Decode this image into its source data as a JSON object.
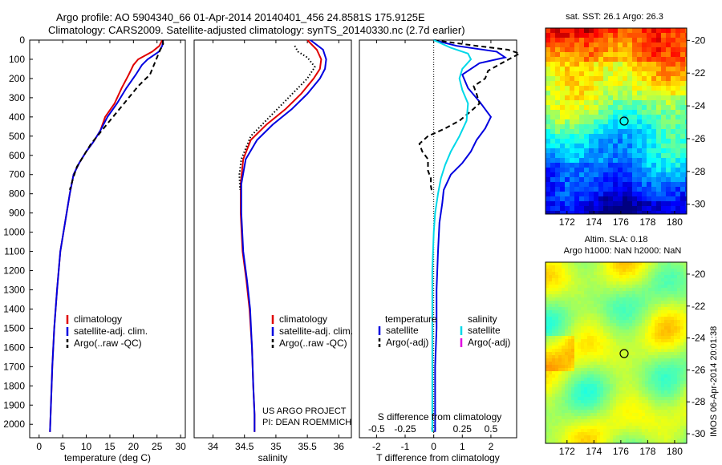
{
  "header": {
    "line1": "Argo profile: AO 5904340_66 01-Apr-2014 20140401_456 24.8581S 175.9125E",
    "line2": "Climatology: CARS2009. Satellite-adjusted climatology: synTS_20140330.nc (2.7d earlier)"
  },
  "chart_data": [
    {
      "id": "temperature",
      "type": "line",
      "xlabel": "temperature (deg C)",
      "xlim": [
        -2,
        31
      ],
      "ylim": [
        2070,
        0
      ],
      "xticks": [
        0,
        5,
        10,
        15,
        20,
        25,
        30
      ],
      "yticks": [
        0,
        100,
        200,
        300,
        400,
        500,
        600,
        700,
        800,
        900,
        1000,
        1100,
        1200,
        1300,
        1400,
        1500,
        1600,
        1700,
        1800,
        1900,
        2000
      ],
      "legend": [
        "climatology",
        "satellite-adj. clim.",
        "Argo(..raw -QC)"
      ],
      "series": [
        {
          "name": "climatology",
          "color": "#e00000",
          "style": "solid",
          "x": [
            26.1,
            25.5,
            24,
            21,
            20,
            19,
            17.5,
            16,
            14,
            13,
            11.5,
            10,
            8.5,
            7.3,
            6.5,
            5.5,
            4.5,
            3.8,
            3.2,
            2.8,
            2.5,
            2.3
          ],
          "y": [
            0,
            30,
            60,
            100,
            130,
            180,
            250,
            330,
            400,
            470,
            530,
            580,
            640,
            700,
            800,
            950,
            1100,
            1300,
            1500,
            1700,
            1900,
            2040
          ]
        },
        {
          "name": "satellite-adj. clim.",
          "color": "#0000e0",
          "style": "solid",
          "x": [
            26.3,
            26.1,
            25.4,
            23,
            21.8,
            20.5,
            18.5,
            16.5,
            14.5,
            13,
            11.5,
            10,
            8.5,
            7.3,
            6.5,
            5.5,
            4.5,
            3.8,
            3.2,
            2.8,
            2.5,
            2.3
          ],
          "y": [
            0,
            30,
            60,
            100,
            130,
            180,
            250,
            330,
            400,
            470,
            530,
            580,
            640,
            700,
            800,
            950,
            1100,
            1300,
            1500,
            1700,
            1900,
            2040
          ]
        },
        {
          "name": "Argo(..raw -QC)",
          "color": "#000000",
          "style": "dashed",
          "x": [
            26.2,
            26.3,
            25.5,
            24.5,
            23.5,
            21,
            19,
            17,
            15,
            13,
            11,
            9.5,
            8,
            7.2,
            6.5
          ],
          "y": [
            0,
            20,
            60,
            120,
            180,
            240,
            300,
            360,
            420,
            480,
            540,
            600,
            660,
            720,
            780
          ]
        }
      ]
    },
    {
      "id": "salinity",
      "type": "line",
      "xlabel": "salinity",
      "xlim": [
        33.7,
        36.2
      ],
      "ylim": [
        2070,
        0
      ],
      "xticks": [
        34,
        34.5,
        35,
        35.5,
        36
      ],
      "legend": [
        "climatology",
        "satellite-adj. clim.",
        "Argo(..raw -QC)"
      ],
      "annotation": [
        "US ARGO PROJECT",
        "PI: DEAN ROEMMICH"
      ],
      "series": [
        {
          "name": "climatology",
          "color": "#e00000",
          "style": "solid",
          "x": [
            35.5,
            35.65,
            35.72,
            35.7,
            35.6,
            35.4,
            35.15,
            34.85,
            34.6,
            34.48,
            34.44,
            34.44,
            34.47,
            34.53,
            34.58,
            34.62,
            34.64,
            34.66,
            34.66
          ],
          "y": [
            0,
            50,
            100,
            150,
            200,
            280,
            360,
            440,
            520,
            620,
            750,
            900,
            1100,
            1250,
            1400,
            1600,
            1800,
            1950,
            2040
          ]
        },
        {
          "name": "satellite-adj. clim.",
          "color": "#0000e0",
          "style": "solid",
          "x": [
            35.55,
            35.75,
            35.8,
            35.78,
            35.7,
            35.5,
            35.25,
            34.95,
            34.7,
            34.52,
            34.45,
            34.45,
            34.48,
            34.54,
            34.59,
            34.62,
            34.64,
            34.66,
            34.66
          ],
          "y": [
            0,
            50,
            100,
            150,
            200,
            280,
            360,
            440,
            520,
            620,
            750,
            900,
            1100,
            1250,
            1400,
            1600,
            1800,
            1950,
            2040
          ]
        },
        {
          "name": "Argo(..raw -QC)",
          "color": "#000000",
          "style": "dotted",
          "x": [
            35.3,
            35.35,
            35.5,
            35.62,
            35.5,
            35.2,
            34.9,
            34.6,
            34.45,
            34.42,
            34.43
          ],
          "y": [
            30,
            60,
            90,
            140,
            200,
            300,
            400,
            500,
            620,
            700,
            780
          ]
        }
      ]
    },
    {
      "id": "difference",
      "type": "line",
      "xlabel_bottom": "T difference from climatology",
      "xlabel_top": "S difference from climatology",
      "xlim": [
        -2.6,
        2.9
      ],
      "ylim": [
        2070,
        0
      ],
      "xticks_bottom": [
        -2,
        -1,
        0,
        1,
        2
      ],
      "xticks_top_labels": [
        "-0.5",
        "-0.25",
        "0",
        "0.25",
        "0.5"
      ],
      "legend_temperature_title": "temperature",
      "legend_salinity_title": "salinity",
      "legend_temperature": [
        "satellite",
        "Argo(-adj)"
      ],
      "legend_salinity": [
        "satellite",
        "Argo(-adj)"
      ],
      "series": [
        {
          "name": "T satellite",
          "color": "#0000e0",
          "style": "solid",
          "x": [
            0,
            0.8,
            2.2,
            2.5,
            1.6,
            1.0,
            1.2,
            1.6,
            2.0,
            1.8,
            1.5,
            1.3,
            1.0,
            0.6,
            0.35,
            0.3,
            0.2,
            0.15,
            0.1,
            0.1,
            0.05,
            0.05,
            0.05
          ],
          "y": [
            0,
            30,
            60,
            90,
            120,
            180,
            250,
            320,
            400,
            460,
            520,
            580,
            640,
            700,
            780,
            850,
            950,
            1100,
            1300,
            1500,
            1700,
            1900,
            2040
          ]
        },
        {
          "name": "T Argo(-adj)",
          "color": "#000000",
          "style": "dashed",
          "x": [
            0,
            1.5,
            2.6,
            3.0,
            2.5,
            1.9,
            1.8,
            1.4,
            1.5,
            1.6,
            1.3,
            0.9,
            0.4,
            -0.2,
            -0.5,
            -0.4,
            -0.2,
            -0.2,
            -0.1,
            -0.1,
            -0.05
          ],
          "y": [
            0,
            30,
            50,
            70,
            110,
            160,
            200,
            240,
            280,
            330,
            370,
            420,
            460,
            500,
            540,
            580,
            620,
            680,
            720,
            760,
            800
          ]
        },
        {
          "name": "S satellite",
          "color": "#00d8e8",
          "style": "solid",
          "x": [
            0,
            0.6,
            1.2,
            1.3,
            1.0,
            0.9,
            1.0,
            1.2,
            1.15,
            0.9,
            0.6,
            0.4,
            0.25,
            0.15,
            0.05,
            0.0,
            -0.05,
            -0.05,
            -0.05,
            -0.05,
            -0.05
          ],
          "y": [
            0,
            40,
            70,
            100,
            150,
            200,
            260,
            330,
            420,
            500,
            580,
            650,
            720,
            800,
            900,
            1000,
            1200,
            1400,
            1600,
            1800,
            2040
          ]
        },
        {
          "name": "S Argo(-adj)",
          "color": "#e000e0",
          "style": "solid",
          "x": [],
          "y": []
        }
      ]
    },
    {
      "id": "sst_map",
      "type": "heatmap",
      "title": "sat. SST: 26.1 Argo: 26.3",
      "xticks": [
        172,
        174,
        176,
        178,
        180
      ],
      "yticks": [
        -20,
        -22,
        -24,
        -26,
        -28,
        -30
      ],
      "marker": {
        "lon": 175.9,
        "lat": -24.86
      }
    },
    {
      "id": "sla_map",
      "type": "heatmap",
      "title_line1": "Altim. SLA: 0.18",
      "title_line2": "Argo h1000: NaN h2000: NaN",
      "xticks": [
        172,
        174,
        176,
        178,
        180
      ],
      "yticks": [
        -20,
        -22,
        -24,
        -26,
        -28,
        -30
      ],
      "marker": {
        "lon": 175.9,
        "lat": -24.86
      }
    }
  ],
  "side_label": "IMOS 06-Apr-2014 20:01:38",
  "colors": {
    "climatology": "#e00000",
    "satellite": "#0000e0",
    "argo": "#000000",
    "salinity_sat": "#00d8e8",
    "salinity_argo": "#e000e0"
  }
}
